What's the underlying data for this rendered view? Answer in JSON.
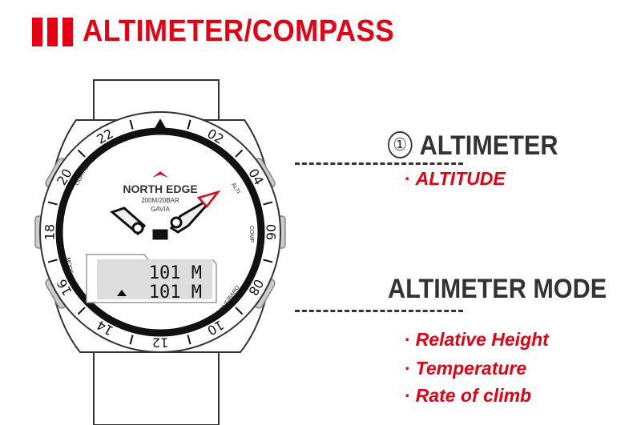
{
  "header": {
    "title": "ALTIMETER/COMPASS",
    "accent": "#e60012"
  },
  "watch": {
    "brand": "NORTH EDGE",
    "spec": "200M/20BAR",
    "model": "GAVIA",
    "bezel_numbers": [
      "02",
      "04",
      "06",
      "08",
      "10",
      "12",
      "14",
      "16",
      "18",
      "20",
      "22"
    ],
    "dial_labels": {
      "light": "LIGHT/EXIT",
      "alti": "ALTI",
      "comp": "COMP",
      "dive": "DIVE/BARO",
      "mode": "MODE"
    },
    "lcd_line1": "101 M",
    "lcd_line2": "101 M"
  },
  "section1": {
    "number": "①",
    "title": "ALTIMETER",
    "items": [
      "ALTITUDE"
    ]
  },
  "section2": {
    "title": "ALTIMETER MODE",
    "items": [
      "Relative Height",
      "Temperature",
      "Rate of climb"
    ]
  }
}
